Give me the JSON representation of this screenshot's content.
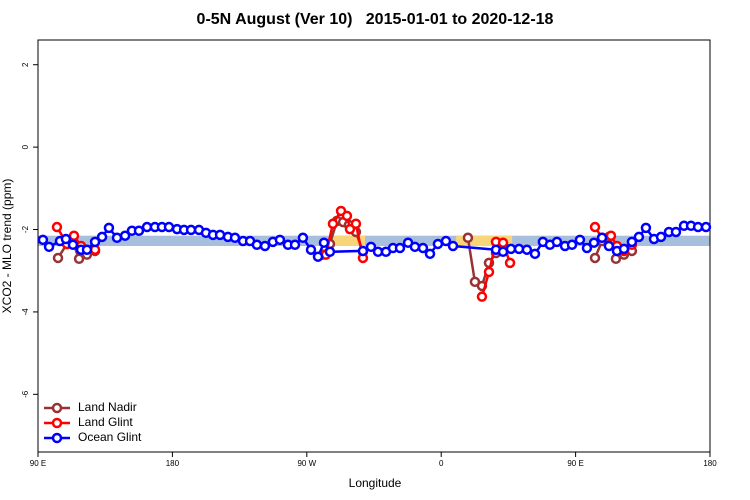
{
  "chart_data": {
    "type": "line",
    "title": "0-5N August (Ver 10)   2015-01-01 to 2020-12-18",
    "x_label": "Longitude",
    "y_label": "XCO2 - MLO trend (ppm)",
    "xlim": [
      90,
      540
    ],
    "ylim": [
      -7.4,
      2.6
    ],
    "xticks": [
      {
        "value": 90,
        "label": "90 E"
      },
      180,
      {
        "value": 270,
        "label": "90 W"
      },
      {
        "value": 360,
        "label": "0"
      },
      {
        "value": 450,
        "label": "90 E"
      },
      {
        "value": 540,
        "label": "180"
      }
    ],
    "yticks": [
      2,
      0,
      -2,
      -4,
      -6
    ],
    "legend_position": "bottom-left",
    "bands": [
      {
        "color": "#a8bedd",
        "x": [
          90,
          540
        ],
        "y": [
          -2.4,
          -2.15
        ]
      },
      {
        "color": "#f9d57a",
        "x": [
          287.5,
          309
        ],
        "y": [
          -2.4,
          -2.15
        ]
      },
      {
        "color": "#f9d57a",
        "x": [
          370,
          407.5
        ],
        "y": [
          -2.4,
          -2.15
        ]
      }
    ],
    "series": [
      {
        "name": "Land Nadir",
        "color": "#993333",
        "x": [
          103.4,
          109.4,
          113.4,
          117.5,
          122.8,
          128.2,
          null,
          280.8,
          285.5,
          290.2,
          294.3,
          298.2,
          302.9,
          307.6,
          null,
          377.9,
          382.6,
          387.3,
          392,
          396.7,
          401.4,
          null,
          463,
          467.7,
          472.3,
          477,
          482.4,
          487.7
        ],
        "values": [
          -2.69,
          -2.35,
          -2.32,
          -2.71,
          -2.61,
          -2.52,
          null,
          -2.61,
          -2.35,
          -1.79,
          -1.82,
          -1.89,
          -2.06,
          -2.54,
          null,
          -2.2,
          -3.27,
          -3.37,
          -2.81,
          -2.57,
          -2.37,
          null,
          -2.69,
          -2.28,
          -2.18,
          -2.71,
          -2.61,
          -2.52
        ]
      },
      {
        "name": "Land Glint",
        "color": "#ff0000",
        "x": [
          102.7,
          109.4,
          114.1,
          118.8,
          128.2,
          null,
          282.8,
          287.5,
          292.9,
          296.9,
          298.9,
          302.9,
          307.6,
          null,
          387.3,
          392,
          396.7,
          401.4,
          406.1,
          null,
          463,
          467.7,
          473.7,
          477.7,
          482.4,
          487.7
        ],
        "values": [
          -1.94,
          -2.35,
          -2.15,
          -2.4,
          -2.49,
          null,
          -2.61,
          -1.86,
          -1.55,
          -1.67,
          -1.99,
          -1.86,
          -2.69,
          null,
          -3.63,
          -3.03,
          -2.3,
          -2.32,
          -2.81,
          null,
          -1.94,
          -2.2,
          -2.15,
          -2.4,
          -2.52,
          -2.37
        ]
      },
      {
        "name": "Ocean Glint",
        "color": "#0000ff",
        "x": [
          93.3,
          97.4,
          104.7,
          108.7,
          113.4,
          118.8,
          122.8,
          128.2,
          132.9,
          137.5,
          142.9,
          148.3,
          152.9,
          157.6,
          163,
          168.3,
          173,
          177.7,
          183.1,
          187.8,
          192.5,
          197.8,
          202.5,
          207.2,
          211.9,
          217.2,
          221.9,
          227.3,
          232,
          236.6,
          242,
          247.3,
          252,
          257.4,
          262.1,
          267.4,
          272.8,
          277.5,
          281.5,
          285.5,
          307.6,
          313,
          317.7,
          323,
          327.7,
          332.4,
          337.8,
          342.4,
          347.8,
          352.5,
          357.8,
          363.2,
          367.9,
          396.7,
          401.4,
          406.7,
          412.1,
          417.4,
          422.8,
          428.1,
          432.8,
          437.5,
          442.9,
          447.6,
          452.9,
          457.6,
          462.3,
          467.7,
          472.3,
          477.7,
          482.4,
          487.7,
          492.4,
          497.1,
          502.5,
          507.2,
          512.5,
          517.2,
          522.6,
          527.3,
          532,
          537.3
        ],
        "values": [
          -2.25,
          -2.42,
          -2.28,
          -2.23,
          -2.37,
          -2.49,
          -2.49,
          -2.3,
          -2.18,
          -1.96,
          -2.2,
          -2.15,
          -2.03,
          -2.03,
          -1.94,
          -1.94,
          -1.94,
          -1.94,
          -1.99,
          -2.01,
          -2.01,
          -2.01,
          -2.08,
          -2.13,
          -2.13,
          -2.18,
          -2.2,
          -2.28,
          -2.28,
          -2.37,
          -2.4,
          -2.3,
          -2.25,
          -2.37,
          -2.37,
          -2.2,
          -2.49,
          -2.66,
          -2.32,
          -2.54,
          -2.52,
          -2.42,
          -2.54,
          -2.54,
          -2.45,
          -2.45,
          -2.32,
          -2.42,
          -2.45,
          -2.59,
          -2.35,
          -2.28,
          -2.4,
          -2.49,
          -2.54,
          -2.47,
          -2.47,
          -2.49,
          -2.59,
          -2.3,
          -2.37,
          -2.3,
          -2.4,
          -2.37,
          -2.25,
          -2.45,
          -2.32,
          -2.2,
          -2.4,
          -2.52,
          -2.47,
          -2.3,
          -2.18,
          -1.96,
          -2.23,
          -2.18,
          -2.06,
          -2.06,
          -1.91,
          -1.91,
          -1.94,
          -1.94
        ]
      }
    ]
  }
}
